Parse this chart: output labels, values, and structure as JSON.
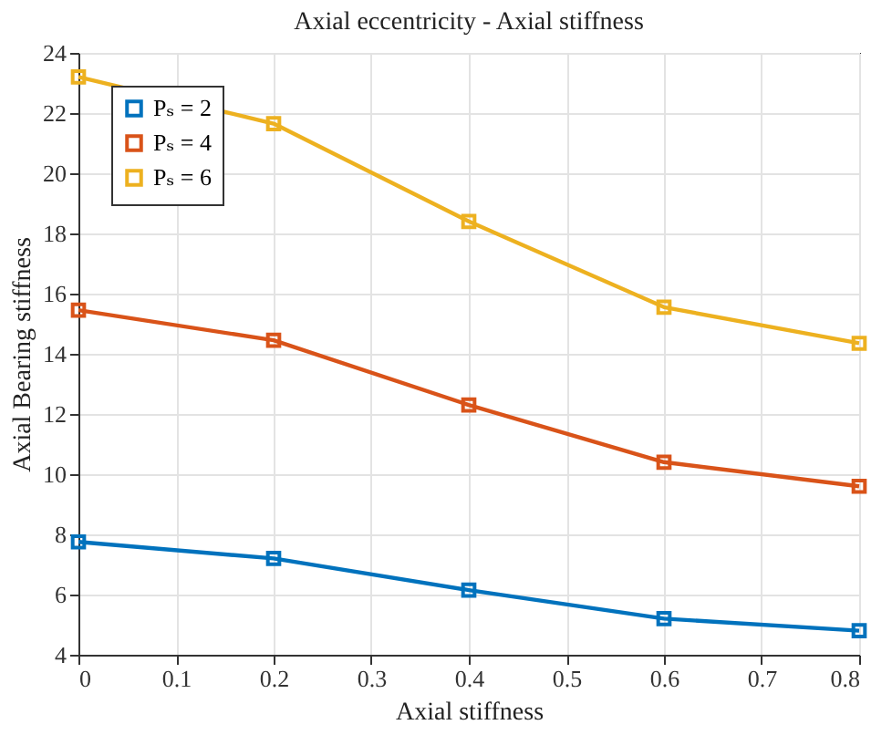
{
  "chart_data": {
    "type": "line",
    "title": "Axial eccentricity - Axial stiffness",
    "xlabel": "Axial stiffness",
    "ylabel": "Axial Bearing stiffness",
    "x": [
      0,
      0.2,
      0.4,
      0.6,
      0.8
    ],
    "series": [
      {
        "name": "Pₛ = 2",
        "color": "#0072bd",
        "values": [
          7.75,
          7.2,
          6.15,
          5.2,
          4.8
        ]
      },
      {
        "name": "Pₛ = 4",
        "color": "#d95319",
        "values": [
          15.45,
          14.45,
          12.3,
          10.4,
          9.6
        ]
      },
      {
        "name": "Pₛ = 6",
        "color": "#edb120",
        "values": [
          23.2,
          21.65,
          18.4,
          15.55,
          14.35
        ]
      }
    ],
    "xlim": [
      0,
      0.8
    ],
    "xticks": [
      0,
      0.1,
      0.2,
      0.3,
      0.4,
      0.5,
      0.6,
      0.7,
      0.8
    ],
    "ylim": [
      4,
      24
    ],
    "yticks": [
      4,
      6,
      8,
      10,
      12,
      14,
      16,
      18,
      20,
      22,
      24
    ],
    "grid": true,
    "legend": "top left",
    "marker": "square",
    "line_style": "solid"
  }
}
